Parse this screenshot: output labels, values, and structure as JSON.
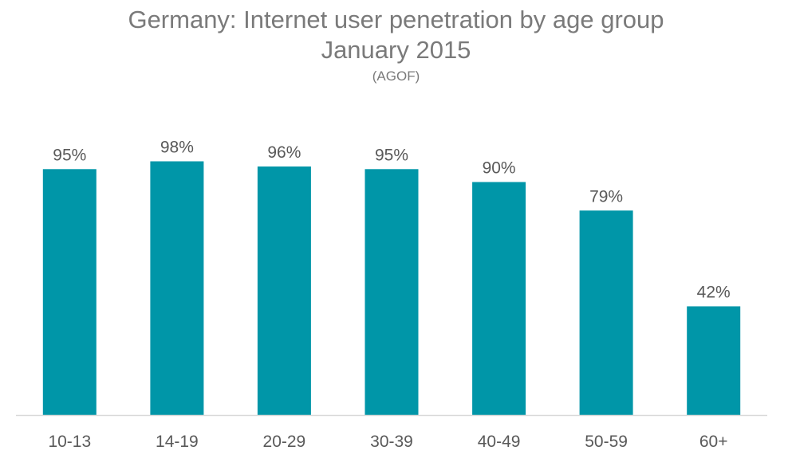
{
  "chart_data": {
    "type": "bar",
    "title": "Germany: Internet user penetration by age group",
    "subtitle": "January 2015",
    "source": "(AGOF)",
    "categories": [
      "10-13",
      "14-19",
      "20-29",
      "30-39",
      "40-49",
      "50-59",
      "60+"
    ],
    "values": [
      95,
      98,
      96,
      95,
      90,
      79,
      42
    ],
    "value_labels": [
      "95%",
      "98%",
      "96%",
      "95%",
      "90%",
      "79%",
      "42%"
    ],
    "unit": "%",
    "xlabel": "",
    "ylabel": "",
    "ylim": [
      0,
      100
    ],
    "grid": false,
    "legend": "none",
    "bar_color": "#0096a8",
    "axis_color": "#d9d9d9"
  }
}
